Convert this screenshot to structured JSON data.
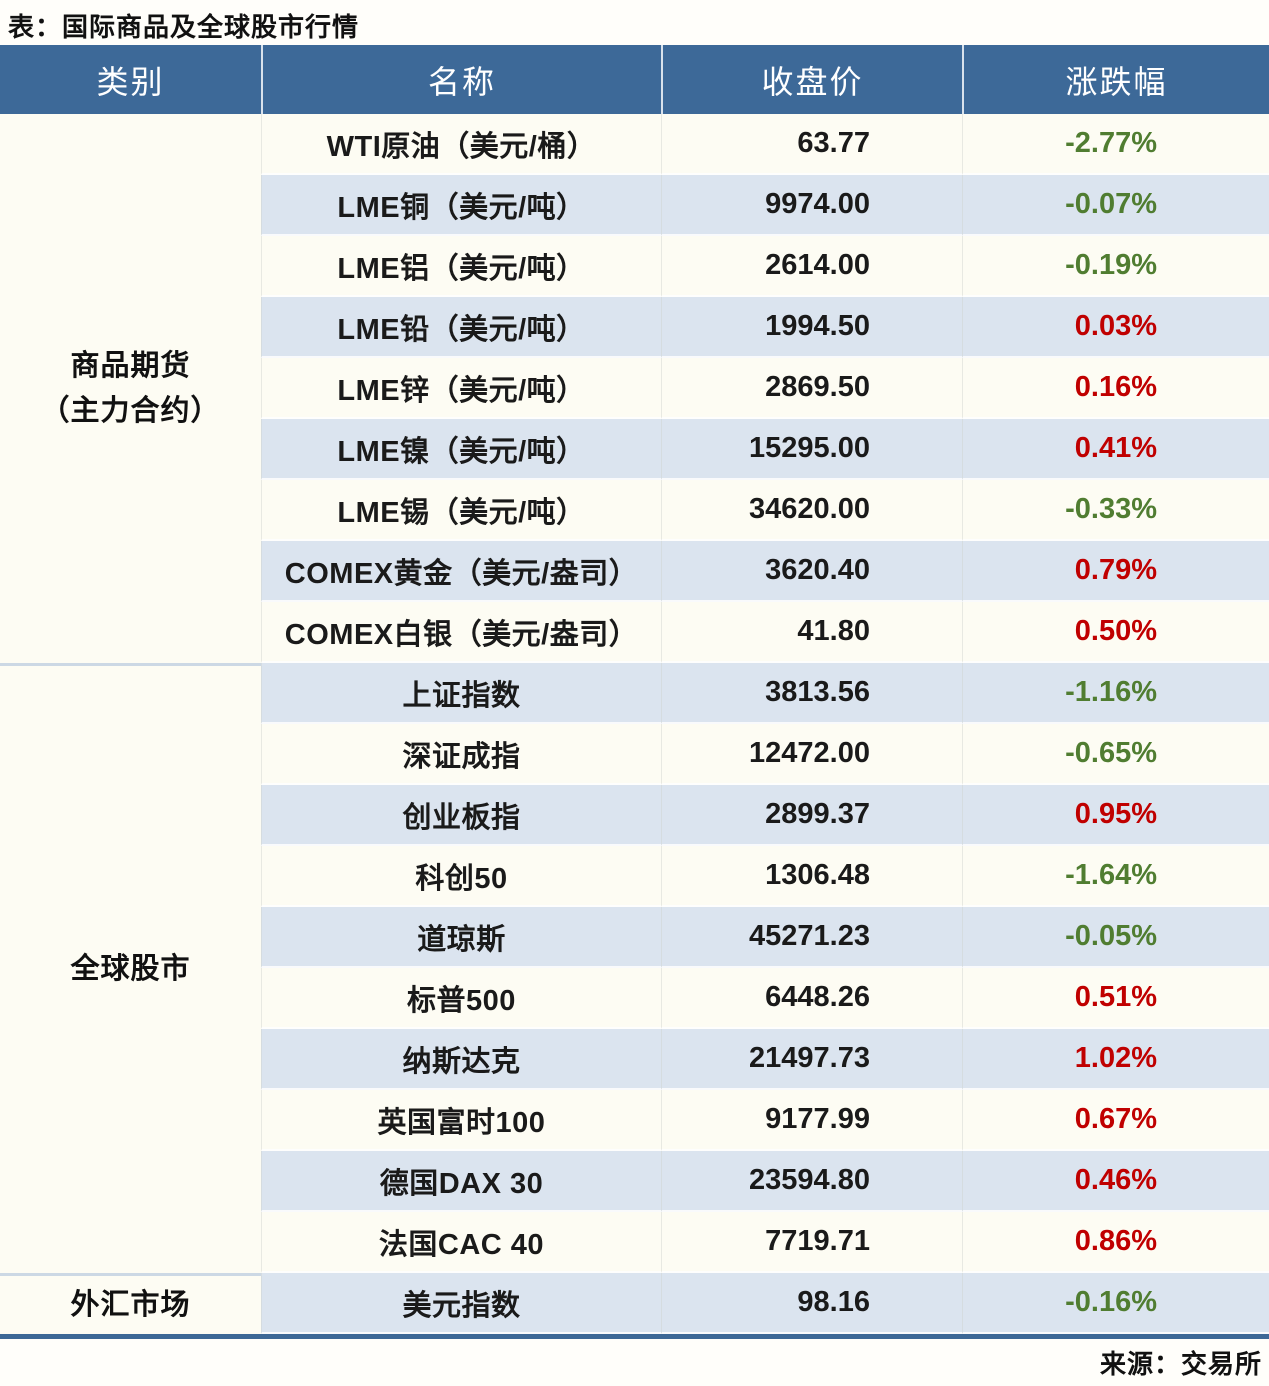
{
  "page": {
    "title": "表：国际商品及全球股市行情",
    "source": "来源：交易所"
  },
  "colors": {
    "header_bg": "#3d6998",
    "stripe_blue": "#dbe4ef",
    "stripe_cream": "#fdfcf3",
    "up_red": "#c00000",
    "down_green": "#507d31",
    "bottom_border_blue": "#3d6896",
    "section_divider_blue": "#ccd8e4"
  },
  "table": {
    "headers": {
      "category": "类别",
      "name": "名称",
      "close": "收盘价",
      "change": "涨跌幅"
    },
    "sections": [
      {
        "category_lines": [
          "商品期货",
          "（主力合约）"
        ],
        "rows": [
          {
            "name": "WTI原油（美元/桶）",
            "close": "63.77",
            "change": "-2.77%",
            "dir": "down"
          },
          {
            "name": "LME铜（美元/吨）",
            "close": "9974.00",
            "change": "-0.07%",
            "dir": "down"
          },
          {
            "name": "LME铝（美元/吨）",
            "close": "2614.00",
            "change": "-0.19%",
            "dir": "down"
          },
          {
            "name": "LME铅（美元/吨）",
            "close": "1994.50",
            "change": "0.03%",
            "dir": "up"
          },
          {
            "name": "LME锌（美元/吨）",
            "close": "2869.50",
            "change": "0.16%",
            "dir": "up"
          },
          {
            "name": "LME镍（美元/吨）",
            "close": "15295.00",
            "change": "0.41%",
            "dir": "up"
          },
          {
            "name": "LME锡（美元/吨）",
            "close": "34620.00",
            "change": "-0.33%",
            "dir": "down"
          },
          {
            "name": "COMEX黄金（美元/盎司）",
            "close": "3620.40",
            "change": "0.79%",
            "dir": "up"
          },
          {
            "name": "COMEX白银（美元/盎司）",
            "close": "41.80",
            "change": "0.50%",
            "dir": "up"
          }
        ]
      },
      {
        "category_lines": [
          "全球股市"
        ],
        "rows": [
          {
            "name": "上证指数",
            "close": "3813.56",
            "change": "-1.16%",
            "dir": "down"
          },
          {
            "name": "深证成指",
            "close": "12472.00",
            "change": "-0.65%",
            "dir": "down"
          },
          {
            "name": "创业板指",
            "close": "2899.37",
            "change": "0.95%",
            "dir": "up"
          },
          {
            "name": "科创50",
            "close": "1306.48",
            "change": "-1.64%",
            "dir": "down"
          },
          {
            "name": "道琼斯",
            "close": "45271.23",
            "change": "-0.05%",
            "dir": "down"
          },
          {
            "name": "标普500",
            "close": "6448.26",
            "change": "0.51%",
            "dir": "up"
          },
          {
            "name": "纳斯达克",
            "close": "21497.73",
            "change": "1.02%",
            "dir": "up"
          },
          {
            "name": "英国富时100",
            "close": "9177.99",
            "change": "0.67%",
            "dir": "up"
          },
          {
            "name": "德国DAX 30",
            "close": "23594.80",
            "change": "0.46%",
            "dir": "up"
          },
          {
            "name": "法国CAC 40",
            "close": "7719.71",
            "change": "0.86%",
            "dir": "up"
          }
        ]
      },
      {
        "category_lines": [
          "外汇市场"
        ],
        "rows": [
          {
            "name": "美元指数",
            "close": "98.16",
            "change": "-0.16%",
            "dir": "down"
          }
        ]
      }
    ]
  },
  "chart_data": {
    "type": "table",
    "title": "表：国际商品及全球股市行情",
    "source": "来源：交易所",
    "columns": [
      "类别",
      "名称",
      "收盘价",
      "涨跌幅"
    ],
    "rows": [
      [
        "商品期货（主力合约）",
        "WTI原油（美元/桶）",
        63.77,
        "-2.77%"
      ],
      [
        "商品期货（主力合约）",
        "LME铜（美元/吨）",
        9974.0,
        "-0.07%"
      ],
      [
        "商品期货（主力合约）",
        "LME铝（美元/吨）",
        2614.0,
        "-0.19%"
      ],
      [
        "商品期货（主力合约）",
        "LME铅（美元/吨）",
        1994.5,
        "0.03%"
      ],
      [
        "商品期货（主力合约）",
        "LME锌（美元/吨）",
        2869.5,
        "0.16%"
      ],
      [
        "商品期货（主力合约）",
        "LME镍（美元/吨）",
        15295.0,
        "0.41%"
      ],
      [
        "商品期货（主力合约）",
        "LME锡（美元/吨）",
        34620.0,
        "-0.33%"
      ],
      [
        "商品期货（主力合约）",
        "COMEX黄金（美元/盎司）",
        3620.4,
        "0.79%"
      ],
      [
        "商品期货（主力合约）",
        "COMEX白银（美元/盎司）",
        41.8,
        "0.50%"
      ],
      [
        "全球股市",
        "上证指数",
        3813.56,
        "-1.16%"
      ],
      [
        "全球股市",
        "深证成指",
        12472.0,
        "-0.65%"
      ],
      [
        "全球股市",
        "创业板指",
        2899.37,
        "0.95%"
      ],
      [
        "全球股市",
        "科创50",
        1306.48,
        "-1.64%"
      ],
      [
        "全球股市",
        "道琼斯",
        45271.23,
        "-0.05%"
      ],
      [
        "全球股市",
        "标普500",
        6448.26,
        "0.51%"
      ],
      [
        "全球股市",
        "纳斯达克",
        21497.73,
        "1.02%"
      ],
      [
        "全球股市",
        "英国富时100",
        9177.99,
        "0.67%"
      ],
      [
        "全球股市",
        "德国DAX 30",
        23594.8,
        "0.46%"
      ],
      [
        "全球股市",
        "法国CAC 40",
        7719.71,
        "0.86%"
      ],
      [
        "外汇市场",
        "美元指数",
        98.16,
        "-0.16%"
      ]
    ],
    "notes": "positive changes shown in red (#c00000), negative in green (#507d31); header blue #3d6998; alternating row stripes cream/#dbe4ef"
  }
}
